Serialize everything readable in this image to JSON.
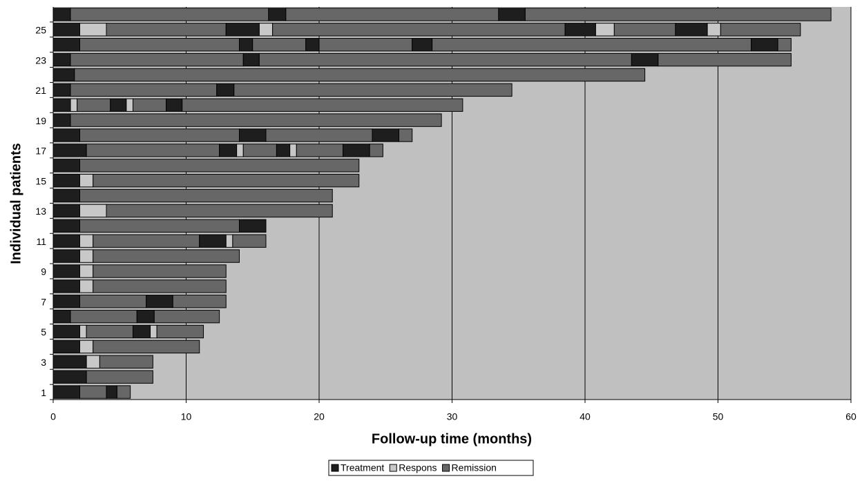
{
  "chart_data": {
    "type": "swimmer",
    "x_label": "Follow-up time (months)",
    "y_label": "Individual patients",
    "xlim": [
      0,
      60
    ],
    "xticks": [
      0,
      10,
      20,
      30,
      40,
      50,
      60
    ],
    "grid": true,
    "categories": [
      "1",
      null,
      "3",
      null,
      "5",
      null,
      "7",
      null,
      "9",
      null,
      "11",
      null,
      "13",
      null,
      "15",
      null,
      "17",
      null,
      "19",
      null,
      "21",
      null,
      "23",
      null,
      "25",
      null
    ],
    "series": [
      {
        "name": "Treatment",
        "color": "#1e1e1e"
      },
      {
        "name": "Respons",
        "color": "#c8c8c8"
      },
      {
        "name": "Remission",
        "color": "#676767"
      }
    ],
    "bars": [
      [
        {
          "series": 0,
          "value": 2
        },
        {
          "series": 2,
          "value": 2
        },
        {
          "series": 0,
          "value": 0.8
        },
        {
          "series": 2,
          "value": 1
        }
      ],
      [
        {
          "series": 0,
          "value": 2.5
        },
        {
          "series": 2,
          "value": 5
        }
      ],
      [
        {
          "series": 0,
          "value": 2.5
        },
        {
          "series": 1,
          "value": 1
        },
        {
          "series": 2,
          "value": 4
        }
      ],
      [
        {
          "series": 0,
          "value": 2
        },
        {
          "series": 1,
          "value": 1
        },
        {
          "series": 2,
          "value": 8
        }
      ],
      [
        {
          "series": 0,
          "value": 2
        },
        {
          "series": 1,
          "value": 0.5
        },
        {
          "series": 2,
          "value": 3.5
        },
        {
          "series": 0,
          "value": 1.3
        },
        {
          "series": 1,
          "value": 0.5
        },
        {
          "series": 2,
          "value": 3.5
        }
      ],
      [
        {
          "series": 0,
          "value": 1.3
        },
        {
          "series": 2,
          "value": 5
        },
        {
          "series": 0,
          "value": 1.3
        },
        {
          "series": 2,
          "value": 4.9
        }
      ],
      [
        {
          "series": 0,
          "value": 2
        },
        {
          "series": 2,
          "value": 5
        },
        {
          "series": 0,
          "value": 2
        },
        {
          "series": 2,
          "value": 4
        }
      ],
      [
        {
          "series": 0,
          "value": 2
        },
        {
          "series": 1,
          "value": 1
        },
        {
          "series": 2,
          "value": 10
        }
      ],
      [
        {
          "series": 0,
          "value": 2
        },
        {
          "series": 1,
          "value": 1
        },
        {
          "series": 2,
          "value": 10
        }
      ],
      [
        {
          "series": 0,
          "value": 2
        },
        {
          "series": 1,
          "value": 1
        },
        {
          "series": 2,
          "value": 11
        }
      ],
      [
        {
          "series": 0,
          "value": 2
        },
        {
          "series": 1,
          "value": 1
        },
        {
          "series": 2,
          "value": 8
        },
        {
          "series": 0,
          "value": 2
        },
        {
          "series": 1,
          "value": 0.5
        },
        {
          "series": 2,
          "value": 2.5
        }
      ],
      [
        {
          "series": 0,
          "value": 2
        },
        {
          "series": 2,
          "value": 12
        },
        {
          "series": 0,
          "value": 2
        }
      ],
      [
        {
          "series": 0,
          "value": 2
        },
        {
          "series": 1,
          "value": 2
        },
        {
          "series": 2,
          "value": 17
        }
      ],
      [
        {
          "series": 0,
          "value": 2
        },
        {
          "series": 2,
          "value": 19
        }
      ],
      [
        {
          "series": 0,
          "value": 2
        },
        {
          "series": 1,
          "value": 1
        },
        {
          "series": 2,
          "value": 20
        }
      ],
      [
        {
          "series": 0,
          "value": 2
        },
        {
          "series": 2,
          "value": 21
        }
      ],
      [
        {
          "series": 0,
          "value": 2.5
        },
        {
          "series": 2,
          "value": 10
        },
        {
          "series": 0,
          "value": 1.3
        },
        {
          "series": 1,
          "value": 0.5
        },
        {
          "series": 2,
          "value": 2.5
        },
        {
          "series": 0,
          "value": 1
        },
        {
          "series": 1,
          "value": 0.5
        },
        {
          "series": 2,
          "value": 3.5
        },
        {
          "series": 0,
          "value": 2
        },
        {
          "series": 2,
          "value": 1
        }
      ],
      [
        {
          "series": 0,
          "value": 2
        },
        {
          "series": 2,
          "value": 12
        },
        {
          "series": 0,
          "value": 2
        },
        {
          "series": 2,
          "value": 8
        },
        {
          "series": 0,
          "value": 2
        },
        {
          "series": 2,
          "value": 1
        }
      ],
      [
        {
          "series": 0,
          "value": 1.3
        },
        {
          "series": 2,
          "value": 27.9
        }
      ],
      [
        {
          "series": 0,
          "value": 1.3
        },
        {
          "series": 1,
          "value": 0.5
        },
        {
          "series": 2,
          "value": 2.5
        },
        {
          "series": 0,
          "value": 1.2
        },
        {
          "series": 1,
          "value": 0.5
        },
        {
          "series": 2,
          "value": 2.5
        },
        {
          "series": 0,
          "value": 1.2
        },
        {
          "series": 2,
          "value": 21.1
        }
      ],
      [
        {
          "series": 0,
          "value": 1.3
        },
        {
          "series": 2,
          "value": 11
        },
        {
          "series": 0,
          "value": 1.3
        },
        {
          "series": 2,
          "value": 20.9
        }
      ],
      [
        {
          "series": 0,
          "value": 1.6
        },
        {
          "series": 2,
          "value": 42.9
        }
      ],
      [
        {
          "series": 0,
          "value": 1.3
        },
        {
          "series": 2,
          "value": 13
        },
        {
          "series": 0,
          "value": 1.2
        },
        {
          "series": 2,
          "value": 28
        },
        {
          "series": 0,
          "value": 2
        },
        {
          "series": 2,
          "value": 10
        }
      ],
      [
        {
          "series": 0,
          "value": 2
        },
        {
          "series": 2,
          "value": 12
        },
        {
          "series": 0,
          "value": 1
        },
        {
          "series": 2,
          "value": 4
        },
        {
          "series": 0,
          "value": 1
        },
        {
          "series": 2,
          "value": 7
        },
        {
          "series": 0,
          "value": 1.5
        },
        {
          "series": 2,
          "value": 24
        },
        {
          "series": 0,
          "value": 2
        },
        {
          "series": 2,
          "value": 1
        }
      ],
      [
        {
          "series": 0,
          "value": 2
        },
        {
          "series": 1,
          "value": 2
        },
        {
          "series": 2,
          "value": 9
        },
        {
          "series": 0,
          "value": 2.5
        },
        {
          "series": 1,
          "value": 1
        },
        {
          "series": 2,
          "value": 22
        },
        {
          "series": 0,
          "value": 2.3
        },
        {
          "series": 1,
          "value": 1.4
        },
        {
          "series": 2,
          "value": 4.6
        },
        {
          "series": 0,
          "value": 2.4
        },
        {
          "series": 1,
          "value": 1
        },
        {
          "series": 2,
          "value": 6
        }
      ],
      [
        {
          "series": 0,
          "value": 1.3
        },
        {
          "series": 2,
          "value": 14.9
        },
        {
          "series": 0,
          "value": 1.3
        },
        {
          "series": 2,
          "value": 16
        },
        {
          "series": 0,
          "value": 2
        },
        {
          "series": 2,
          "value": 23
        }
      ]
    ]
  }
}
